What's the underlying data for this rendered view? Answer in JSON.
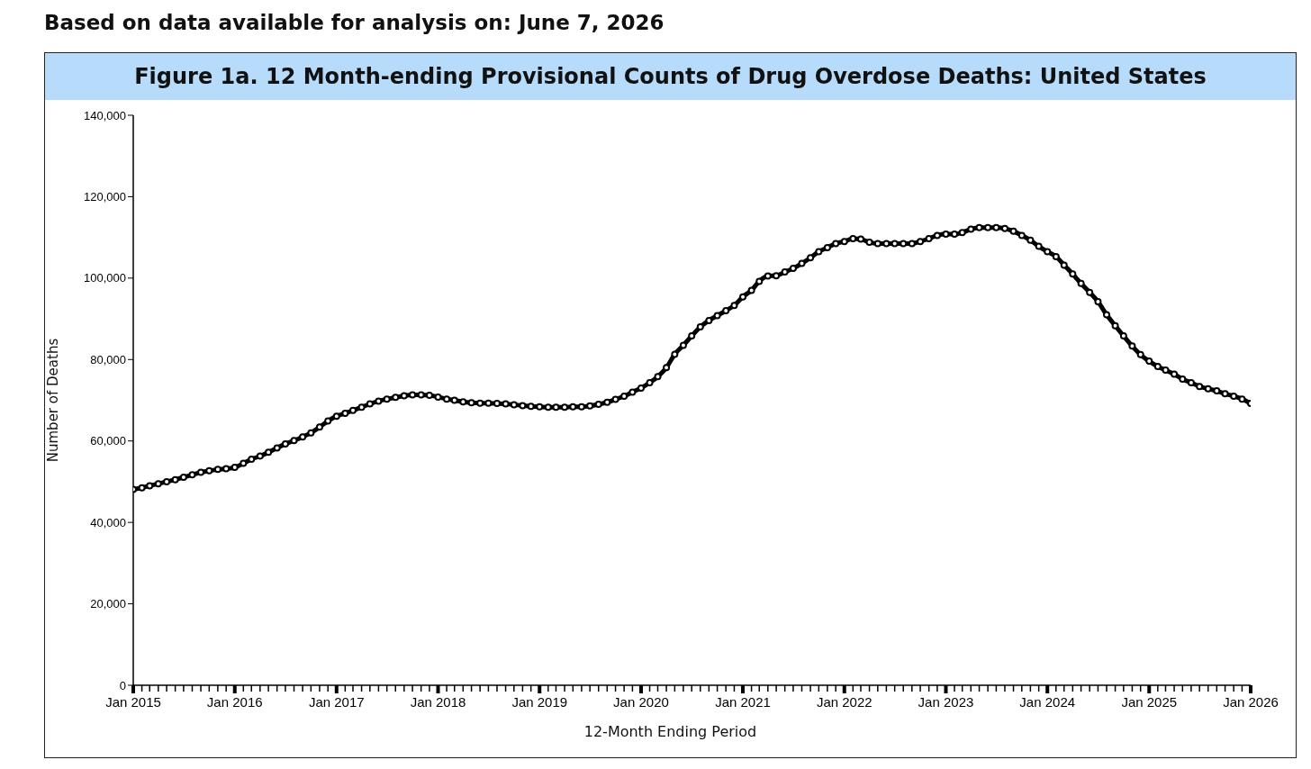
{
  "chart_data": {
    "type": "line",
    "subtitle": "Based on data available for analysis on: June 7, 2026",
    "title": "Figure 1a. 12 Month-ending Provisional Counts of Drug Overdose Deaths: United States",
    "xlabel": "12-Month Ending Period",
    "ylabel": "Number of Deaths",
    "x": [
      "2015-01",
      "2015-02",
      "2015-03",
      "2015-04",
      "2015-05",
      "2015-06",
      "2015-07",
      "2015-08",
      "2015-09",
      "2015-10",
      "2015-11",
      "2015-12",
      "2016-01",
      "2016-02",
      "2016-03",
      "2016-04",
      "2016-05",
      "2016-06",
      "2016-07",
      "2016-08",
      "2016-09",
      "2016-10",
      "2016-11",
      "2016-12",
      "2017-01",
      "2017-02",
      "2017-03",
      "2017-04",
      "2017-05",
      "2017-06",
      "2017-07",
      "2017-08",
      "2017-09",
      "2017-10",
      "2017-11",
      "2017-12",
      "2018-01",
      "2018-02",
      "2018-03",
      "2018-04",
      "2018-05",
      "2018-06",
      "2018-07",
      "2018-08",
      "2018-09",
      "2018-10",
      "2018-11",
      "2018-12",
      "2019-01",
      "2019-02",
      "2019-03",
      "2019-04",
      "2019-05",
      "2019-06",
      "2019-07",
      "2019-08",
      "2019-09",
      "2019-10",
      "2019-11",
      "2019-12",
      "2020-01",
      "2020-02",
      "2020-03",
      "2020-04",
      "2020-05",
      "2020-06",
      "2020-07",
      "2020-08",
      "2020-09",
      "2020-10",
      "2020-11",
      "2020-12",
      "2021-01",
      "2021-02",
      "2021-03",
      "2021-04",
      "2021-05",
      "2021-06",
      "2021-07",
      "2021-08",
      "2021-09",
      "2021-10",
      "2021-11",
      "2021-12",
      "2022-01",
      "2022-02",
      "2022-03",
      "2022-04",
      "2022-05",
      "2022-06",
      "2022-07",
      "2022-08",
      "2022-09",
      "2022-10",
      "2022-11",
      "2022-12",
      "2023-01",
      "2023-02",
      "2023-03",
      "2023-04",
      "2023-05",
      "2023-06",
      "2023-07",
      "2023-08",
      "2023-09",
      "2023-10",
      "2023-11",
      "2023-12",
      "2024-01",
      "2024-02",
      "2024-03",
      "2024-04",
      "2024-05",
      "2024-06",
      "2024-07",
      "2024-08",
      "2024-09",
      "2024-10",
      "2024-11",
      "2024-12",
      "2025-01",
      "2025-02",
      "2025-03",
      "2025-04",
      "2025-05",
      "2025-06",
      "2025-07",
      "2025-08",
      "2025-09",
      "2025-10",
      "2025-11",
      "2025-12",
      "2026-01"
    ],
    "series": [
      {
        "color": "#000000",
        "values": [
          48100,
          48500,
          49000,
          49500,
          50000,
          50500,
          51100,
          51700,
          52300,
          52700,
          53000,
          53200,
          53500,
          54500,
          55500,
          56300,
          57200,
          58300,
          59300,
          60100,
          61000,
          62000,
          63400,
          64900,
          66100,
          66800,
          67500,
          68300,
          69100,
          69800,
          70300,
          70700,
          71100,
          71300,
          71300,
          71200,
          70800,
          70300,
          70000,
          69600,
          69400,
          69300,
          69300,
          69200,
          69100,
          68900,
          68700,
          68500,
          68400,
          68300,
          68300,
          68300,
          68400,
          68400,
          68600,
          69000,
          69500,
          70200,
          71000,
          72000,
          73000,
          74300,
          75800,
          78000,
          81300,
          83500,
          85800,
          88000,
          89600,
          90800,
          92000,
          93300,
          95400,
          97000,
          99200,
          100500,
          100600,
          101500,
          102400,
          103600,
          105000,
          106500,
          107500,
          108500,
          109000,
          109700,
          109600,
          108800,
          108500,
          108500,
          108500,
          108500,
          108500,
          109000,
          109700,
          110500,
          110800,
          110800,
          111200,
          112000,
          112400,
          112400,
          112400,
          112200,
          111500,
          110500,
          109300,
          107800,
          106500,
          105300,
          103200,
          101000,
          98700,
          96500,
          94200,
          91000,
          88300,
          85800,
          83300,
          81200,
          79600,
          78300,
          77400,
          76400,
          75200,
          74300,
          73400,
          72800,
          72300,
          71600,
          71000,
          70300,
          69200
        ]
      }
    ],
    "xlim": [
      "2015-01",
      "2026-01"
    ],
    "xticks": [
      {
        "value": "2015-01",
        "label": "Jan 2015"
      },
      {
        "value": "2015-02",
        "label": null
      },
      {
        "value": "2015-03",
        "label": null
      },
      {
        "value": "2015-04",
        "label": null
      },
      {
        "value": "2015-05",
        "label": null
      },
      {
        "value": "2015-06",
        "label": null
      },
      {
        "value": "2015-07",
        "label": null
      },
      {
        "value": "2015-08",
        "label": null
      },
      {
        "value": "2015-09",
        "label": null
      },
      {
        "value": "2015-10",
        "label": null
      },
      {
        "value": "2015-11",
        "label": null
      },
      {
        "value": "2015-12",
        "label": null
      },
      {
        "value": "2016-01",
        "label": "Jan 2016"
      },
      {
        "value": "2016-02",
        "label": null
      },
      {
        "value": "2016-03",
        "label": null
      },
      {
        "value": "2016-04",
        "label": null
      },
      {
        "value": "2016-05",
        "label": null
      },
      {
        "value": "2016-06",
        "label": null
      },
      {
        "value": "2016-07",
        "label": null
      },
      {
        "value": "2016-08",
        "label": null
      },
      {
        "value": "2016-09",
        "label": null
      },
      {
        "value": "2016-10",
        "label": null
      },
      {
        "value": "2016-11",
        "label": null
      },
      {
        "value": "2016-12",
        "label": null
      },
      {
        "value": "2017-01",
        "label": "Jan 2017"
      },
      {
        "value": "2017-02",
        "label": null
      },
      {
        "value": "2017-03",
        "label": null
      },
      {
        "value": "2017-04",
        "label": null
      },
      {
        "value": "2017-05",
        "label": null
      },
      {
        "value": "2017-06",
        "label": null
      },
      {
        "value": "2017-07",
        "label": null
      },
      {
        "value": "2017-08",
        "label": null
      },
      {
        "value": "2017-09",
        "label": null
      },
      {
        "value": "2017-10",
        "label": null
      },
      {
        "value": "2017-11",
        "label": null
      },
      {
        "value": "2017-12",
        "label": null
      },
      {
        "value": "2018-01",
        "label": "Jan 2018"
      },
      {
        "value": "2018-02",
        "label": null
      },
      {
        "value": "2018-03",
        "label": null
      },
      {
        "value": "2018-04",
        "label": null
      },
      {
        "value": "2018-05",
        "label": null
      },
      {
        "value": "2018-06",
        "label": null
      },
      {
        "value": "2018-07",
        "label": null
      },
      {
        "value": "2018-08",
        "label": null
      },
      {
        "value": "2018-09",
        "label": null
      },
      {
        "value": "2018-10",
        "label": null
      },
      {
        "value": "2018-11",
        "label": null
      },
      {
        "value": "2018-12",
        "label": null
      },
      {
        "value": "2019-01",
        "label": "Jan 2019"
      },
      {
        "value": "2019-02",
        "label": null
      },
      {
        "value": "2019-03",
        "label": null
      },
      {
        "value": "2019-04",
        "label": null
      },
      {
        "value": "2019-05",
        "label": null
      },
      {
        "value": "2019-06",
        "label": null
      },
      {
        "value": "2019-07",
        "label": null
      },
      {
        "value": "2019-08",
        "label": null
      },
      {
        "value": "2019-09",
        "label": null
      },
      {
        "value": "2019-10",
        "label": null
      },
      {
        "value": "2019-11",
        "label": null
      },
      {
        "value": "2019-12",
        "label": null
      },
      {
        "value": "2020-01",
        "label": "Jan 2020"
      },
      {
        "value": "2020-02",
        "label": null
      },
      {
        "value": "2020-03",
        "label": null
      },
      {
        "value": "2020-04",
        "label": null
      },
      {
        "value": "2020-05",
        "label": null
      },
      {
        "value": "2020-06",
        "label": null
      },
      {
        "value": "2020-07",
        "label": null
      },
      {
        "value": "2020-08",
        "label": null
      },
      {
        "value": "2020-09",
        "label": null
      },
      {
        "value": "2020-10",
        "label": null
      },
      {
        "value": "2020-11",
        "label": null
      },
      {
        "value": "2020-12",
        "label": null
      },
      {
        "value": "2021-01",
        "label": "Jan 2021"
      },
      {
        "value": "2021-02",
        "label": null
      },
      {
        "value": "2021-03",
        "label": null
      },
      {
        "value": "2021-04",
        "label": null
      },
      {
        "value": "2021-05",
        "label": null
      },
      {
        "value": "2021-06",
        "label": null
      },
      {
        "value": "2021-07",
        "label": null
      },
      {
        "value": "2021-08",
        "label": null
      },
      {
        "value": "2021-09",
        "label": null
      },
      {
        "value": "2021-10",
        "label": null
      },
      {
        "value": "2021-11",
        "label": null
      },
      {
        "value": "2021-12",
        "label": null
      },
      {
        "value": "2022-01",
        "label": "Jan 2022"
      },
      {
        "value": "2022-02",
        "label": null
      },
      {
        "value": "2022-03",
        "label": null
      },
      {
        "value": "2022-04",
        "label": null
      },
      {
        "value": "2022-05",
        "label": null
      },
      {
        "value": "2022-06",
        "label": null
      },
      {
        "value": "2022-07",
        "label": null
      },
      {
        "value": "2022-08",
        "label": null
      },
      {
        "value": "2022-09",
        "label": null
      },
      {
        "value": "2022-10",
        "label": null
      },
      {
        "value": "2022-11",
        "label": null
      },
      {
        "value": "2022-12",
        "label": null
      },
      {
        "value": "2023-01",
        "label": "Jan 2023"
      },
      {
        "value": "2023-02",
        "label": null
      },
      {
        "value": "2023-03",
        "label": null
      },
      {
        "value": "2023-04",
        "label": null
      },
      {
        "value": "2023-05",
        "label": null
      },
      {
        "value": "2023-06",
        "label": null
      },
      {
        "value": "2023-07",
        "label": null
      },
      {
        "value": "2023-08",
        "label": null
      },
      {
        "value": "2023-09",
        "label": null
      },
      {
        "value": "2023-10",
        "label": null
      },
      {
        "value": "2023-11",
        "label": null
      },
      {
        "value": "2023-12",
        "label": null
      },
      {
        "value": "2024-01",
        "label": "Jan 2024"
      },
      {
        "value": "2024-02",
        "label": null
      },
      {
        "value": "2024-03",
        "label": null
      },
      {
        "value": "2024-04",
        "label": null
      },
      {
        "value": "2024-05",
        "label": null
      },
      {
        "value": "2024-06",
        "label": null
      },
      {
        "value": "2024-07",
        "label": null
      },
      {
        "value": "2024-08",
        "label": null
      },
      {
        "value": "2024-09",
        "label": null
      },
      {
        "value": "2024-10",
        "label": null
      },
      {
        "value": "2024-11",
        "label": null
      },
      {
        "value": "2024-12",
        "label": null
      },
      {
        "value": "2025-01",
        "label": "Jan 2025"
      },
      {
        "value": "2025-02",
        "label": null
      },
      {
        "value": "2025-03",
        "label": null
      },
      {
        "value": "2025-04",
        "label": null
      },
      {
        "value": "2025-05",
        "label": null
      },
      {
        "value": "2025-06",
        "label": null
      },
      {
        "value": "2025-07",
        "label": null
      },
      {
        "value": "2025-08",
        "label": null
      },
      {
        "value": "2025-09",
        "label": null
      },
      {
        "value": "2025-10",
        "label": null
      },
      {
        "value": "2025-11",
        "label": null
      },
      {
        "value": "2025-12",
        "label": null
      },
      {
        "value": "2026-01",
        "label": "Jan 2026"
      }
    ],
    "ylim": [
      0,
      140000
    ],
    "yticks": [
      {
        "value": 0,
        "label": "0"
      },
      {
        "value": 20000,
        "label": "20,000"
      },
      {
        "value": 40000,
        "label": "40,000"
      },
      {
        "value": 60000,
        "label": "60,000"
      },
      {
        "value": 80000,
        "label": "80,000"
      },
      {
        "value": 100000,
        "label": "100,000"
      },
      {
        "value": 120000,
        "label": "120,000"
      },
      {
        "value": 140000,
        "label": "140,000"
      }
    ],
    "grid": false,
    "legend": false,
    "marker": "circle",
    "line_style": "solid"
  }
}
